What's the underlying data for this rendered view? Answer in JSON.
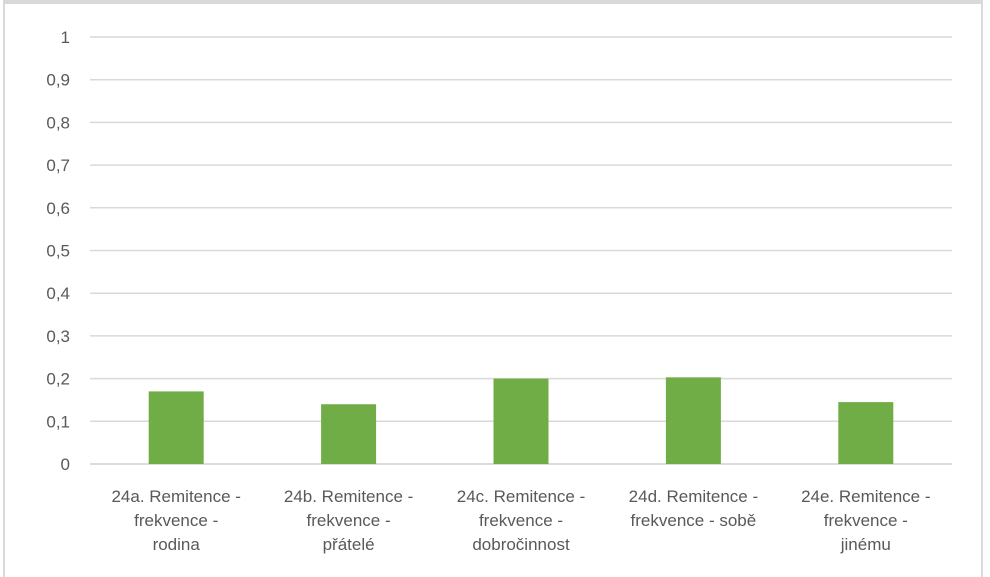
{
  "chart_data": {
    "type": "bar",
    "title": "",
    "xlabel": "",
    "ylabel": "",
    "ylim": [
      0,
      1
    ],
    "yticks": [
      "0",
      "0,1",
      "0,2",
      "0,3",
      "0,4",
      "0,5",
      "0,6",
      "0,7",
      "0,8",
      "0,9",
      "1"
    ],
    "grid": true,
    "bar_color": "#70ad47",
    "categories": [
      [
        "24a. Remitence -",
        "frekvence -",
        "rodina"
      ],
      [
        "24b. Remitence -",
        "frekvence -",
        "přátelé"
      ],
      [
        "24c. Remitence -",
        "frekvence -",
        "dobročinnost"
      ],
      [
        "24d. Remitence -",
        "frekvence - sobě"
      ],
      [
        "24e. Remitence -",
        "frekvence -",
        "jinému"
      ]
    ],
    "values": [
      0.17,
      0.14,
      0.2,
      0.203,
      0.145
    ]
  }
}
